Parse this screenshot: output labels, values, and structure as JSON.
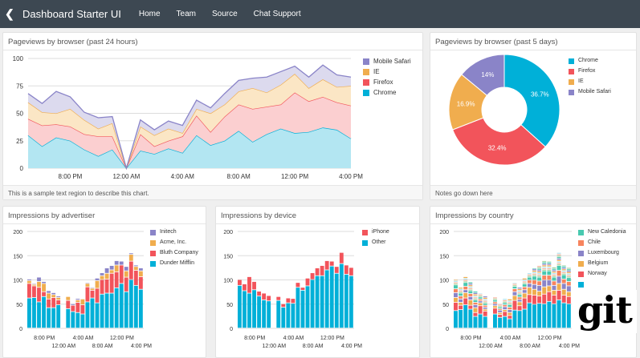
{
  "header": {
    "back_icon": "chevron-left-icon",
    "title": "Dashboard Starter UI",
    "nav": [
      "Home",
      "Team",
      "Source",
      "Chat Support"
    ]
  },
  "panels": {
    "pageviews_24h": {
      "title": "Pageviews by browser (past 24 hours)",
      "footer": "This is a sample text region to describe this chart."
    },
    "pageviews_5d": {
      "title": "Pageviews by browser (past 5 days)",
      "footer": "Notes go down here"
    },
    "advertiser": {
      "title": "Impressions by advertiser"
    },
    "device": {
      "title": "Impressions by device"
    },
    "country": {
      "title": "Impressions by country"
    }
  },
  "logo": {
    "text": "git"
  },
  "chart_data": [
    {
      "id": "pageviews_24h",
      "type": "area",
      "stacked": true,
      "ylim": [
        0,
        100
      ],
      "yticks": [
        0,
        25,
        50,
        75,
        100
      ],
      "grid": true,
      "legend": "right",
      "xticks": [
        {
          "index": 3,
          "label": "8:00 PM"
        },
        {
          "index": 7,
          "label": "12:00 AM"
        },
        {
          "index": 11,
          "label": "4:00 AM"
        },
        {
          "index": 15,
          "label": "8:00 AM"
        },
        {
          "index": 19,
          "label": "12:00 PM"
        },
        {
          "index": 23,
          "label": "4:00 PM"
        }
      ],
      "series": [
        {
          "name": "Chrome",
          "color": "#00b0d8",
          "fill": "#b3e6f2",
          "values": [
            30,
            20,
            28,
            25,
            17,
            11,
            17,
            0,
            16,
            13,
            18,
            14,
            30,
            21,
            25,
            34,
            24,
            31,
            36,
            32,
            33,
            37,
            35,
            27
          ]
        },
        {
          "name": "Firefox",
          "color": "#f2545b",
          "fill": "#fbcfd0",
          "values": [
            15,
            19,
            12,
            13,
            14,
            18,
            12,
            0,
            15,
            7,
            7,
            15,
            18,
            12,
            22,
            24,
            30,
            25,
            22,
            37,
            28,
            28,
            25,
            30
          ]
        },
        {
          "name": "IE",
          "color": "#f0ad4e",
          "fill": "#fbe6c5",
          "values": [
            15,
            12,
            10,
            16,
            13,
            7,
            12,
            0,
            7,
            10,
            11,
            3,
            6,
            17,
            11,
            12,
            19,
            13,
            18,
            17,
            12,
            16,
            14,
            18
          ]
        },
        {
          "name": "Mobile Safari",
          "color": "#8a84c8",
          "fill": "#dcdaee",
          "values": [
            8,
            8,
            20,
            11,
            7,
            10,
            6,
            0,
            6,
            5,
            7,
            7,
            8,
            5,
            10,
            10,
            9,
            14,
            12,
            7,
            10,
            13,
            11,
            8
          ]
        }
      ]
    },
    {
      "id": "pageviews_5d",
      "type": "pie",
      "donut": true,
      "legend": "right",
      "slices": [
        {
          "name": "Chrome",
          "value": 36.7,
          "label": "36.7%",
          "color": "#00b0d8"
        },
        {
          "name": "Firefox",
          "value": 32.4,
          "label": "32.4%",
          "color": "#f2545b"
        },
        {
          "name": "IE",
          "value": 16.9,
          "label": "16.9%",
          "color": "#f0ad4e"
        },
        {
          "name": "Mobile Safari",
          "value": 14,
          "label": "14%",
          "color": "#8a84c8"
        }
      ]
    },
    {
      "id": "advertiser",
      "type": "bar",
      "stacked": true,
      "ylim": [
        0,
        200
      ],
      "yticks": [
        0,
        50,
        100,
        150,
        200
      ],
      "grid": true,
      "legend": "right",
      "xticks": [
        {
          "index": 3,
          "label": "8:00 PM"
        },
        {
          "index": 7,
          "label": "12:00 AM"
        },
        {
          "index": 11,
          "label": "4:00 AM"
        },
        {
          "index": 15,
          "label": "8:00 AM"
        },
        {
          "index": 19,
          "label": "12:00 PM"
        },
        {
          "index": 23,
          "label": "4:00 PM"
        }
      ],
      "series": [
        {
          "name": "Dunder Mifflin",
          "color": "#00b0d8",
          "values": [
            62,
            63,
            54,
            65,
            42,
            42,
            48,
            0,
            40,
            34,
            32,
            29,
            54,
            62,
            52,
            70,
            72,
            72,
            83,
            92,
            75,
            100,
            88,
            80
          ]
        },
        {
          "name": "Bluth Company",
          "color": "#f2545b",
          "values": [
            30,
            24,
            30,
            10,
            18,
            21,
            10,
            0,
            17,
            13,
            21,
            19,
            31,
            16,
            30,
            30,
            29,
            41,
            33,
            38,
            30,
            38,
            31,
            26
          ]
        },
        {
          "name": "Acme, Inc.",
          "color": "#f0ad4e",
          "values": [
            6,
            3,
            12,
            17,
            12,
            6,
            5,
            0,
            8,
            0,
            5,
            12,
            7,
            4,
            16,
            8,
            12,
            7,
            14,
            0,
            13,
            14,
            8,
            12
          ]
        },
        {
          "name": "Initech",
          "color": "#8a84c8",
          "values": [
            3,
            2,
            9,
            4,
            5,
            4,
            3,
            0,
            0,
            3,
            3,
            1,
            2,
            2,
            5,
            6,
            11,
            9,
            9,
            8,
            9,
            3,
            3,
            6
          ]
        }
      ]
    },
    {
      "id": "device",
      "type": "bar",
      "stacked": true,
      "ylim": [
        0,
        200
      ],
      "yticks": [
        0,
        50,
        100,
        150,
        200
      ],
      "grid": true,
      "legend": "right",
      "xticks": [
        {
          "index": 3,
          "label": "8:00 PM"
        },
        {
          "index": 7,
          "label": "12:00 AM"
        },
        {
          "index": 11,
          "label": "4:00 AM"
        },
        {
          "index": 15,
          "label": "8:00 AM"
        },
        {
          "index": 19,
          "label": "12:00 PM"
        },
        {
          "index": 23,
          "label": "4:00 PM"
        }
      ],
      "series": [
        {
          "name": "Other",
          "color": "#00b0d8",
          "values": [
            88,
            77,
            72,
            79,
            66,
            58,
            56,
            0,
            57,
            43,
            52,
            51,
            84,
            78,
            87,
            100,
            108,
            108,
            120,
            128,
            113,
            133,
            111,
            108
          ]
        },
        {
          "name": "iPhone",
          "color": "#f2545b",
          "values": [
            12,
            14,
            34,
            17,
            10,
            14,
            11,
            0,
            8,
            7,
            10,
            10,
            10,
            6,
            16,
            14,
            16,
            21,
            19,
            10,
            14,
            23,
            19,
            17
          ]
        }
      ]
    },
    {
      "id": "country",
      "type": "bar",
      "stacked": true,
      "ylim": [
        0,
        200
      ],
      "yticks": [
        0,
        50,
        100,
        150,
        200
      ],
      "grid": true,
      "legend": "right",
      "xticks": [
        {
          "index": 3,
          "label": "8:00 PM"
        },
        {
          "index": 7,
          "label": "12:00 AM"
        },
        {
          "index": 11,
          "label": "4:00 AM"
        },
        {
          "index": 15,
          "label": "8:00 AM"
        },
        {
          "index": 19,
          "label": "12:00 PM"
        },
        {
          "index": 23,
          "label": "4:00 PM"
        }
      ],
      "series": [
        {
          "name": "",
          "color": "#00b0d8",
          "values": [
            36,
            38,
            48,
            39,
            24,
            29,
            24,
            0,
            29,
            22,
            24,
            19,
            37,
            36,
            39,
            52,
            49,
            51,
            50,
            55,
            50,
            58,
            52,
            50
          ]
        },
        {
          "name": "Norway",
          "color": "#f2545b",
          "values": [
            17,
            9,
            14,
            8,
            8,
            17,
            11,
            0,
            12,
            6,
            10,
            7,
            20,
            10,
            23,
            17,
            19,
            15,
            20,
            20,
            18,
            20,
            16,
            15
          ]
        },
        {
          "name": "Belgium",
          "color": "#f0ad4e",
          "values": [
            10,
            6,
            11,
            11,
            10,
            6,
            4,
            0,
            5,
            4,
            4,
            6,
            10,
            8,
            10,
            15,
            12,
            10,
            15,
            12,
            10,
            14,
            12,
            10
          ]
        },
        {
          "name": "Luxembourg",
          "color": "#8a84c8",
          "values": [
            10,
            7,
            6,
            7,
            6,
            4,
            4,
            0,
            4,
            5,
            6,
            6,
            8,
            5,
            7,
            8,
            10,
            12,
            14,
            12,
            10,
            15,
            12,
            12
          ]
        },
        {
          "name": "Chile",
          "color": "#f7845e",
          "values": [
            8,
            6,
            7,
            6,
            5,
            4,
            4,
            0,
            4,
            3,
            4,
            5,
            6,
            5,
            6,
            7,
            9,
            9,
            10,
            10,
            9,
            12,
            9,
            9
          ]
        },
        {
          "name": "New Caledonia",
          "color": "#48c9b0",
          "values": [
            8,
            6,
            8,
            6,
            5,
            4,
            4,
            0,
            4,
            3,
            4,
            5,
            5,
            5,
            6,
            6,
            8,
            8,
            9,
            9,
            8,
            10,
            9,
            8
          ]
        },
        {
          "name": "",
          "color": "#a8d5a2",
          "values": [
            11,
            12,
            12,
            19,
            18,
            8,
            15,
            0,
            7,
            7,
            10,
            13,
            8,
            15,
            12,
            9,
            17,
            24,
            21,
            20,
            22,
            27,
            20,
            21
          ]
        }
      ]
    }
  ]
}
